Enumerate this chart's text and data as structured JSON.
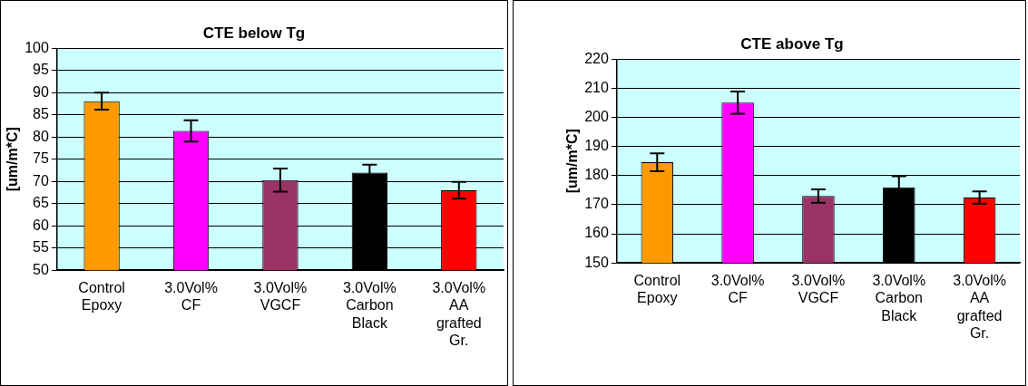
{
  "chart_data": [
    {
      "type": "bar",
      "title": "CTE below Tg",
      "ylabel": "[um/m*C]",
      "categories": [
        "Control Epoxy",
        "3.0Vol% CF",
        "3.0Vol% VGCF",
        "3.0Vol% Carbon Black",
        "3.0Vol% AA grafted Gr."
      ],
      "values": [
        88.1,
        81.4,
        70.3,
        72.0,
        68.0
      ],
      "errors": [
        1.9,
        2.4,
        2.6,
        1.8,
        1.9
      ],
      "colors": [
        "#ff9900",
        "#ff00ff",
        "#993366",
        "#000000",
        "#ff0000"
      ],
      "ylim": [
        50,
        100
      ],
      "yticks": [
        50,
        55,
        60,
        65,
        70,
        75,
        80,
        85,
        90,
        95,
        100
      ],
      "grid": "y",
      "legend": false
    },
    {
      "type": "bar",
      "title": "CTE above Tg",
      "ylabel": "[um/m*C]",
      "categories": [
        "Control Epoxy",
        "3.0Vol% CF",
        "3.0Vol% VGCF",
        "3.0Vol% Carbon Black",
        "3.0Vol% AA grafted Gr."
      ],
      "values": [
        184.6,
        205.1,
        173.0,
        176.0,
        172.5
      ],
      "errors": [
        3.1,
        3.8,
        2.3,
        3.8,
        2.1
      ],
      "colors": [
        "#ff9900",
        "#ff00ff",
        "#993366",
        "#000000",
        "#ff0000"
      ],
      "ylim": [
        150,
        220
      ],
      "yticks": [
        150,
        160,
        170,
        180,
        190,
        200,
        210,
        220
      ],
      "grid": "y",
      "legend": false
    }
  ]
}
